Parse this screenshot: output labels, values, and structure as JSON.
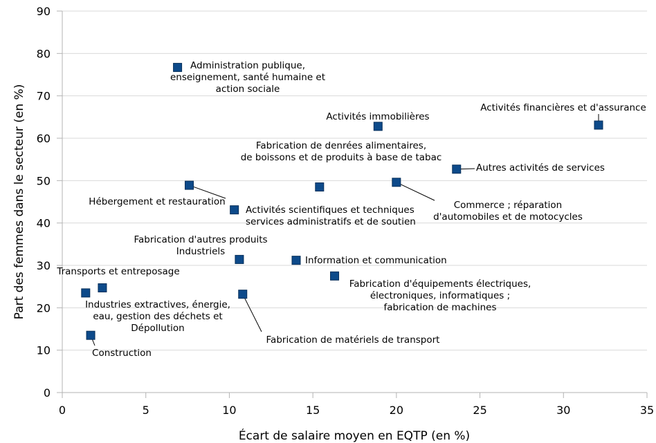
{
  "chart_data": {
    "type": "scatter",
    "xlabel": "Écart de salaire moyen en EQTP (en %)",
    "ylabel": "Part des femmes dans le secteur (en %)",
    "xlim": [
      0,
      35
    ],
    "ylim": [
      0,
      90
    ],
    "xticks": [
      0,
      5,
      10,
      15,
      20,
      25,
      30,
      35
    ],
    "yticks": [
      0,
      10,
      20,
      30,
      40,
      50,
      60,
      70,
      80,
      90
    ],
    "grid": "horizontal",
    "color": "#0d4a8a",
    "points": [
      {
        "x": 6.9,
        "y": 76.7,
        "label": [
          "Administration publique,",
          "enseignement, santé humaine et",
          "action sociale"
        ]
      },
      {
        "x": 18.9,
        "y": 62.8,
        "label": [
          "Activités immobilières"
        ]
      },
      {
        "x": 32.1,
        "y": 63.1,
        "label": [
          "Activités financières et d'assurance"
        ]
      },
      {
        "x": 15.4,
        "y": 48.5,
        "label": [
          "Fabrication de denrées alimentaires,",
          "de boissons et de produits à base de tabac"
        ]
      },
      {
        "x": 23.6,
        "y": 52.7,
        "label": [
          "Autres activités de services"
        ]
      },
      {
        "x": 20.0,
        "y": 49.6,
        "label": [
          "Commerce ; réparation",
          "d'automobiles et de motocycles"
        ]
      },
      {
        "x": 7.6,
        "y": 48.9,
        "label": [
          "Hébergement et restauration"
        ]
      },
      {
        "x": 10.3,
        "y": 43.1,
        "label": [
          "Activités scientifiques et techniques",
          "services administratifs et de soutien"
        ]
      },
      {
        "x": 10.6,
        "y": 31.4,
        "label": [
          "Fabrication d'autres produits",
          "Industriels"
        ]
      },
      {
        "x": 14.0,
        "y": 31.2,
        "label": [
          "Information et communication"
        ]
      },
      {
        "x": 16.3,
        "y": 27.5,
        "label": [
          "Fabrication d'équipements électriques,",
          "électroniques, informatiques ;",
          "fabrication de machines"
        ]
      },
      {
        "x": 1.4,
        "y": 23.5,
        "label": [
          "Transports et entreposage"
        ]
      },
      {
        "x": 2.4,
        "y": 24.7,
        "label": [
          "Industries extractives, énergie,",
          "eau, gestion des déchets et",
          "Dépollution"
        ]
      },
      {
        "x": 10.8,
        "y": 23.2,
        "label": [
          "Fabrication de matériels de transport"
        ]
      },
      {
        "x": 1.7,
        "y": 13.5,
        "label": [
          "Construction"
        ]
      }
    ]
  }
}
